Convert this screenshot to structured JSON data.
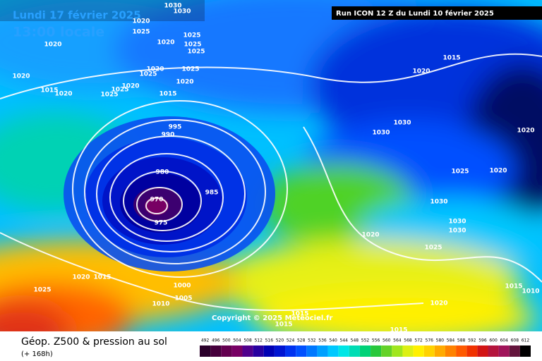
{
  "header": {
    "date": "Lundi 17 février 2025",
    "time": "13:00 locale",
    "run": "Run ICON 12 Z du Lundi 10 février 2025"
  },
  "copyright": "Copyright © 2025 Meteociel.fr",
  "footer": {
    "title": "Géop. Z500 & pression au sol",
    "lead": "(+ 168h)"
  },
  "scale": {
    "values": [
      492,
      496,
      500,
      504,
      508,
      512,
      516,
      520,
      524,
      528,
      532,
      536,
      540,
      544,
      548,
      552,
      556,
      560,
      564,
      568,
      572,
      576,
      580,
      584,
      588,
      592,
      596,
      600,
      604,
      608,
      612
    ],
    "colors": [
      "#2a002a",
      "#46003c",
      "#640050",
      "#780064",
      "#50008c",
      "#2800a0",
      "#0000b4",
      "#0014d2",
      "#0032f0",
      "#0050ff",
      "#0078ff",
      "#00a0ff",
      "#00c8ff",
      "#00e6e6",
      "#00dcb4",
      "#00d278",
      "#28c83c",
      "#64d228",
      "#a0e61e",
      "#dcf014",
      "#fff000",
      "#ffd200",
      "#ffaa00",
      "#ff8200",
      "#ff5a00",
      "#f03200",
      "#d21414",
      "#b4143c",
      "#a0145a",
      "#64143c",
      "#000000"
    ]
  },
  "isobar_labels": [
    1020,
    1025,
    1030,
    1030,
    1020,
    1020,
    1015,
    1020,
    1025,
    1025,
    1020,
    1025,
    1020,
    1025,
    1015,
    1020,
    1025,
    1025,
    1025,
    1020,
    995,
    990,
    980,
    985,
    970,
    975,
    1000,
    1005,
    1010,
    1020,
    1015,
    1025,
    1015,
    1020,
    1030,
    1030,
    1025,
    1020,
    1020,
    1030,
    1030,
    1030,
    1025,
    1020,
    1020,
    1015,
    1010,
    1015,
    1015,
    1015
  ]
}
